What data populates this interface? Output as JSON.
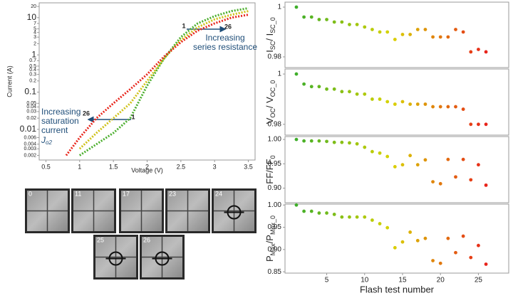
{
  "chart_data": [
    {
      "type": "line",
      "log_y": true,
      "xlabel": "Voltage (V)",
      "ylabel": "Current (A)",
      "xlim": [
        0.4,
        3.6
      ],
      "xticks": [
        0.5,
        1,
        1.5,
        2,
        2.5,
        3,
        3.5
      ],
      "ylim": [
        0.0015,
        25
      ],
      "yticks": [
        0.002,
        0.003,
        0.004,
        0.006,
        0.01,
        0.02,
        0.03,
        0.04,
        0.05,
        0.1,
        0.2,
        0.3,
        0.4,
        0.5,
        0.7,
        1,
        2,
        3,
        4,
        5,
        7,
        10,
        20
      ],
      "x": [
        0.8,
        1.0,
        1.25,
        1.5,
        1.75,
        2.0,
        2.25,
        2.5,
        2.75,
        3.0,
        3.25,
        3.5
      ],
      "series": [
        {
          "name": "1",
          "color": "#4caf2e",
          "values": [
            null,
            0.002,
            0.004,
            0.008,
            0.02,
            0.15,
            0.8,
            3,
            7,
            11,
            15,
            18
          ]
        },
        {
          "color": "#cfc21a",
          "values": [
            null,
            0.003,
            0.008,
            0.02,
            0.05,
            0.2,
            0.8,
            2.5,
            5.5,
            9,
            12,
            15
          ]
        },
        {
          "name": "26",
          "color": "#e8261c",
          "values": [
            0.002,
            0.006,
            0.02,
            0.05,
            0.12,
            0.3,
            0.9,
            2.2,
            4.5,
            7,
            10,
            12
          ]
        }
      ],
      "annotations": [
        {
          "lines": [
            "Increasing",
            "series resistance"
          ]
        },
        {
          "lines": [
            "Increasing",
            "saturation",
            "current"
          ]
        },
        {
          "text": "J",
          "sub": "o2"
        }
      ]
    },
    {
      "type": "scatter",
      "ylabel": [
        {
          "text": "I"
        },
        {
          "text": "SC",
          "sub": true
        },
        {
          "text": "/ I"
        },
        {
          "text": "SC_0",
          "sub": true
        }
      ],
      "xlim": [
        -0.5,
        29
      ],
      "ylim": [
        0.9757,
        1.002
      ],
      "yticks": [
        1,
        0.98
      ],
      "color_scale": [
        "#3fae2a",
        "#d9d400",
        "#e8231a"
      ],
      "x": [
        1,
        2,
        3,
        4,
        5,
        6,
        7,
        8,
        9,
        10,
        11,
        12,
        13,
        14,
        15,
        16,
        17,
        18,
        19,
        20,
        21,
        22,
        23,
        24,
        25,
        26
      ],
      "values": [
        1.0,
        0.996,
        0.996,
        0.995,
        0.995,
        0.994,
        0.994,
        0.993,
        0.993,
        0.992,
        0.991,
        0.99,
        0.99,
        0.987,
        0.989,
        0.989,
        0.991,
        0.991,
        0.988,
        0.988,
        0.988,
        0.991,
        0.99,
        0.982,
        0.983,
        0.982
      ]
    },
    {
      "type": "scatter",
      "ylabel": [
        {
          "text": "V"
        },
        {
          "text": "OC",
          "sub": true
        },
        {
          "text": "/ V"
        },
        {
          "text": "OC_0",
          "sub": true
        }
      ],
      "xlim": [
        -0.5,
        29
      ],
      "ylim": [
        0.9757,
        1.002
      ],
      "yticks": [
        1,
        0.98
      ],
      "color_scale": [
        "#3fae2a",
        "#d9d400",
        "#e8231a"
      ],
      "x": [
        1,
        2,
        3,
        4,
        5,
        6,
        7,
        8,
        9,
        10,
        11,
        12,
        13,
        14,
        15,
        16,
        17,
        18,
        19,
        20,
        21,
        22,
        23,
        24,
        25,
        26
      ],
      "values": [
        1.0,
        0.996,
        0.995,
        0.995,
        0.994,
        0.994,
        0.993,
        0.993,
        0.992,
        0.992,
        0.99,
        0.99,
        0.989,
        0.988,
        0.989,
        0.988,
        0.988,
        0.988,
        0.987,
        0.987,
        0.987,
        0.987,
        0.986,
        0.98,
        0.98,
        0.98
      ]
    },
    {
      "type": "scatter",
      "ylabel": [
        {
          "text": "FF/FF"
        },
        {
          "text": "0",
          "sub": true
        }
      ],
      "xlim": [
        -0.5,
        29
      ],
      "ylim": [
        0.87,
        1.006
      ],
      "yticks": [
        {
          "value": 1,
          "label": "1.00"
        },
        0.95,
        {
          "value": 0.9,
          "label": "0.90"
        }
      ],
      "color_scale": [
        "#3fae2a",
        "#d9d400",
        "#e8231a"
      ],
      "x": [
        1,
        2,
        3,
        4,
        5,
        6,
        7,
        8,
        9,
        10,
        11,
        12,
        13,
        14,
        15,
        16,
        17,
        18,
        19,
        20,
        21,
        22,
        23,
        24,
        25,
        26
      ],
      "values": [
        1.0,
        0.997,
        0.997,
        0.997,
        0.996,
        0.994,
        0.994,
        0.993,
        0.991,
        0.984,
        0.975,
        0.972,
        0.965,
        0.944,
        0.948,
        0.967,
        0.948,
        0.958,
        0.913,
        0.909,
        0.959,
        0.923,
        0.959,
        0.917,
        0.948,
        0.906
      ]
    },
    {
      "type": "scatter",
      "ylabel": [
        {
          "text": "P"
        },
        {
          "text": "Max",
          "sub": true
        },
        {
          "text": "/P"
        },
        {
          "text": "Max_0",
          "sub": true
        }
      ],
      "xlabel": "Flash test number",
      "xlim": [
        -0.5,
        29
      ],
      "xticks": [
        5,
        10,
        15,
        20,
        25
      ],
      "ylim": [
        0.847,
        1.002
      ],
      "yticks": [
        {
          "value": 1,
          "label": "1.00"
        },
        0.95,
        {
          "value": 0.9,
          "label": "0.90"
        },
        0.85
      ],
      "color_scale": [
        "#3fae2a",
        "#d9d400",
        "#e8231a"
      ],
      "x": [
        1,
        2,
        3,
        4,
        5,
        6,
        7,
        8,
        9,
        10,
        11,
        12,
        13,
        14,
        15,
        16,
        17,
        18,
        19,
        20,
        21,
        22,
        23,
        24,
        25,
        26
      ],
      "values": [
        1.0,
        0.986,
        0.986,
        0.982,
        0.982,
        0.979,
        0.973,
        0.973,
        0.973,
        0.973,
        0.966,
        0.958,
        0.949,
        0.904,
        0.917,
        0.939,
        0.92,
        0.925,
        0.875,
        0.869,
        0.925,
        0.893,
        0.93,
        0.882,
        0.909,
        0.867
      ]
    }
  ],
  "el_images": {
    "labels": [
      "0",
      "11",
      "17",
      "23",
      "24",
      "25",
      "26"
    ]
  }
}
